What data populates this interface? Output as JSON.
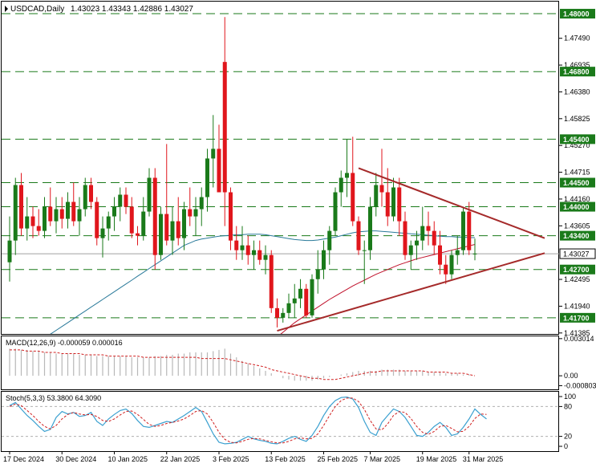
{
  "header": {
    "symbol_label": "USDCAD,Daily",
    "ohlc_text": "1.43023 1.43343 1.42886 1.43027"
  },
  "colors": {
    "bull_candle": "#1a7a1a",
    "bear_candle": "#e0161c",
    "level_line": "#1a7a1a",
    "trendline": "#a52a2a",
    "ma50": "#2a7a9a",
    "ma200": "#c0102a",
    "price_box": "#1a7a1a",
    "current_price_line": "#a0a0a0",
    "macd_hist": "#b8b8b8",
    "macd_signal": "#d02020",
    "stoch_main": "#3aa0d0",
    "stoch_signal": "#d02020"
  },
  "chart_data": [
    {
      "type": "candlestick",
      "name": "price",
      "ylim": [
        1.41365,
        1.4825
      ],
      "x_labels": [
        {
          "label": "17 Dec 2024",
          "index": 0
        },
        {
          "label": "30 Dec 2024",
          "index": 9
        },
        {
          "label": "10 Jan 2025",
          "index": 18
        },
        {
          "label": "22 Jan 2025",
          "index": 27
        },
        {
          "label": "3 Feb 2025",
          "index": 36
        },
        {
          "label": "13 Feb 2025",
          "index": 45
        },
        {
          "label": "25 Feb 2025",
          "index": 54
        },
        {
          "label": "7 Mar 2025",
          "index": 62
        },
        {
          "label": "19 Mar 2025",
          "index": 71
        },
        {
          "label": "31 Mar 2025",
          "index": 79
        }
      ],
      "y_ticks": [
        "1.47490",
        "1.46935",
        "1.46380",
        "1.45825",
        "1.45270",
        "1.44715",
        "1.44160",
        "1.43605",
        "1.42495",
        "1.41940",
        "1.41385"
      ],
      "levels": [
        "1.48000",
        "1.46800",
        "1.45400",
        "1.44500",
        "1.44000",
        "1.43400",
        "1.42700",
        "1.41700"
      ],
      "current_price": "1.43027",
      "candles": [
        {
          "o": 1.4285,
          "h": 1.438,
          "l": 1.4245,
          "c": 1.433
        },
        {
          "o": 1.433,
          "h": 1.446,
          "l": 1.43,
          "c": 1.4445
        },
        {
          "o": 1.4445,
          "h": 1.447,
          "l": 1.434,
          "c": 1.4355
        },
        {
          "o": 1.4355,
          "h": 1.442,
          "l": 1.433,
          "c": 1.438
        },
        {
          "o": 1.438,
          "h": 1.44,
          "l": 1.4335,
          "c": 1.436
        },
        {
          "o": 1.436,
          "h": 1.4395,
          "l": 1.434,
          "c": 1.435
        },
        {
          "o": 1.435,
          "h": 1.442,
          "l": 1.4335,
          "c": 1.44
        },
        {
          "o": 1.44,
          "h": 1.444,
          "l": 1.436,
          "c": 1.437
        },
        {
          "o": 1.437,
          "h": 1.442,
          "l": 1.4345,
          "c": 1.4395
        },
        {
          "o": 1.4395,
          "h": 1.442,
          "l": 1.4355,
          "c": 1.4375
        },
        {
          "o": 1.4375,
          "h": 1.443,
          "l": 1.4355,
          "c": 1.441
        },
        {
          "o": 1.441,
          "h": 1.445,
          "l": 1.436,
          "c": 1.437
        },
        {
          "o": 1.437,
          "h": 1.442,
          "l": 1.434,
          "c": 1.4395
        },
        {
          "o": 1.4395,
          "h": 1.446,
          "l": 1.438,
          "c": 1.4445
        },
        {
          "o": 1.4445,
          "h": 1.446,
          "l": 1.4395,
          "c": 1.441
        },
        {
          "o": 1.441,
          "h": 1.442,
          "l": 1.432,
          "c": 1.4335
        },
        {
          "o": 1.4335,
          "h": 1.438,
          "l": 1.4295,
          "c": 1.4355
        },
        {
          "o": 1.4355,
          "h": 1.439,
          "l": 1.433,
          "c": 1.438
        },
        {
          "o": 1.438,
          "h": 1.442,
          "l": 1.435,
          "c": 1.44
        },
        {
          "o": 1.44,
          "h": 1.444,
          "l": 1.437,
          "c": 1.4425
        },
        {
          "o": 1.4425,
          "h": 1.444,
          "l": 1.4385,
          "c": 1.44
        },
        {
          "o": 1.44,
          "h": 1.442,
          "l": 1.4335,
          "c": 1.4345
        },
        {
          "o": 1.4345,
          "h": 1.436,
          "l": 1.432,
          "c": 1.434
        },
        {
          "o": 1.434,
          "h": 1.442,
          "l": 1.433,
          "c": 1.439
        },
        {
          "o": 1.439,
          "h": 1.448,
          "l": 1.438,
          "c": 1.446
        },
        {
          "o": 1.446,
          "h": 1.448,
          "l": 1.427,
          "c": 1.43
        },
        {
          "o": 1.43,
          "h": 1.44,
          "l": 1.429,
          "c": 1.4385
        },
        {
          "o": 1.4385,
          "h": 1.453,
          "l": 1.432,
          "c": 1.433
        },
        {
          "o": 1.433,
          "h": 1.44,
          "l": 1.43,
          "c": 1.437
        },
        {
          "o": 1.437,
          "h": 1.442,
          "l": 1.432,
          "c": 1.4335
        },
        {
          "o": 1.4335,
          "h": 1.441,
          "l": 1.431,
          "c": 1.4395
        },
        {
          "o": 1.4395,
          "h": 1.444,
          "l": 1.436,
          "c": 1.438
        },
        {
          "o": 1.438,
          "h": 1.442,
          "l": 1.434,
          "c": 1.4395
        },
        {
          "o": 1.4395,
          "h": 1.444,
          "l": 1.436,
          "c": 1.442
        },
        {
          "o": 1.442,
          "h": 1.452,
          "l": 1.439,
          "c": 1.45
        },
        {
          "o": 1.45,
          "h": 1.459,
          "l": 1.444,
          "c": 1.452
        },
        {
          "o": 1.452,
          "h": 1.457,
          "l": 1.443,
          "c": 1.443
        },
        {
          "o": 1.47,
          "h": 1.4793,
          "l": 1.436,
          "c": 1.443
        },
        {
          "o": 1.443,
          "h": 1.444,
          "l": 1.431,
          "c": 1.433
        },
        {
          "o": 1.433,
          "h": 1.436,
          "l": 1.429,
          "c": 1.431
        },
        {
          "o": 1.431,
          "h": 1.436,
          "l": 1.429,
          "c": 1.432
        },
        {
          "o": 1.432,
          "h": 1.434,
          "l": 1.428,
          "c": 1.43
        },
        {
          "o": 1.43,
          "h": 1.433,
          "l": 1.427,
          "c": 1.431
        },
        {
          "o": 1.431,
          "h": 1.433,
          "l": 1.428,
          "c": 1.429
        },
        {
          "o": 1.429,
          "h": 1.432,
          "l": 1.426,
          "c": 1.43
        },
        {
          "o": 1.43,
          "h": 1.431,
          "l": 1.418,
          "c": 1.419
        },
        {
          "o": 1.419,
          "h": 1.421,
          "l": 1.415,
          "c": 1.417
        },
        {
          "o": 1.417,
          "h": 1.419,
          "l": 1.416,
          "c": 1.418
        },
        {
          "o": 1.418,
          "h": 1.422,
          "l": 1.417,
          "c": 1.42
        },
        {
          "o": 1.42,
          "h": 1.424,
          "l": 1.417,
          "c": 1.421
        },
        {
          "o": 1.421,
          "h": 1.425,
          "l": 1.419,
          "c": 1.423
        },
        {
          "o": 1.423,
          "h": 1.424,
          "l": 1.417,
          "c": 1.4175
        },
        {
          "o": 1.4175,
          "h": 1.426,
          "l": 1.417,
          "c": 1.425
        },
        {
          "o": 1.425,
          "h": 1.431,
          "l": 1.422,
          "c": 1.427
        },
        {
          "o": 1.427,
          "h": 1.433,
          "l": 1.425,
          "c": 1.431
        },
        {
          "o": 1.431,
          "h": 1.436,
          "l": 1.428,
          "c": 1.435
        },
        {
          "o": 1.435,
          "h": 1.444,
          "l": 1.434,
          "c": 1.443
        },
        {
          "o": 1.443,
          "h": 1.4475,
          "l": 1.44,
          "c": 1.446
        },
        {
          "o": 1.446,
          "h": 1.454,
          "l": 1.442,
          "c": 1.447
        },
        {
          "o": 1.447,
          "h": 1.4545,
          "l": 1.436,
          "c": 1.437
        },
        {
          "o": 1.437,
          "h": 1.438,
          "l": 1.43,
          "c": 1.431
        },
        {
          "o": 1.431,
          "h": 1.433,
          "l": 1.424,
          "c": 1.431
        },
        {
          "o": 1.431,
          "h": 1.442,
          "l": 1.429,
          "c": 1.44
        },
        {
          "o": 1.44,
          "h": 1.447,
          "l": 1.438,
          "c": 1.4445
        },
        {
          "o": 1.4445,
          "h": 1.452,
          "l": 1.44,
          "c": 1.443
        },
        {
          "o": 1.443,
          "h": 1.448,
          "l": 1.436,
          "c": 1.438
        },
        {
          "o": 1.438,
          "h": 1.446,
          "l": 1.437,
          "c": 1.444
        },
        {
          "o": 1.444,
          "h": 1.446,
          "l": 1.434,
          "c": 1.437
        },
        {
          "o": 1.437,
          "h": 1.439,
          "l": 1.429,
          "c": 1.43
        },
        {
          "o": 1.43,
          "h": 1.433,
          "l": 1.427,
          "c": 1.432
        },
        {
          "o": 1.432,
          "h": 1.435,
          "l": 1.429,
          "c": 1.433
        },
        {
          "o": 1.433,
          "h": 1.44,
          "l": 1.431,
          "c": 1.436
        },
        {
          "o": 1.436,
          "h": 1.439,
          "l": 1.432,
          "c": 1.435
        },
        {
          "o": 1.435,
          "h": 1.437,
          "l": 1.43,
          "c": 1.432
        },
        {
          "o": 1.432,
          "h": 1.435,
          "l": 1.426,
          "c": 1.428
        },
        {
          "o": 1.428,
          "h": 1.43,
          "l": 1.424,
          "c": 1.426
        },
        {
          "o": 1.426,
          "h": 1.431,
          "l": 1.425,
          "c": 1.43
        },
        {
          "o": 1.43,
          "h": 1.434,
          "l": 1.428,
          "c": 1.431
        },
        {
          "o": 1.431,
          "h": 1.44,
          "l": 1.43,
          "c": 1.439
        },
        {
          "o": 1.439,
          "h": 1.441,
          "l": 1.43,
          "c": 1.431
        },
        {
          "o": 1.4302,
          "h": 1.4334,
          "l": 1.4289,
          "c": 1.4303
        }
      ],
      "ma50": [
        1.408,
        1.4088,
        1.4096,
        1.4104,
        1.4112,
        1.412,
        1.4128,
        1.4136,
        1.4144,
        1.4152,
        1.416,
        1.4168,
        1.4176,
        1.4184,
        1.4192,
        1.42,
        1.4208,
        1.4216,
        1.4224,
        1.4232,
        1.424,
        1.4248,
        1.4256,
        1.4264,
        1.4272,
        1.428,
        1.4288,
        1.4296,
        1.4304,
        1.4312,
        1.432,
        1.4325,
        1.433,
        1.4333,
        1.4335,
        1.4337,
        1.4339,
        1.434,
        1.4341,
        1.4342,
        1.4342,
        1.4343,
        1.4343,
        1.4343,
        1.4342,
        1.434,
        1.4338,
        1.4336,
        1.4334,
        1.4332,
        1.4331,
        1.433,
        1.433,
        1.4331,
        1.4333,
        1.4335,
        1.4337,
        1.434,
        1.4343,
        1.4346,
        1.4348,
        1.4349,
        1.435,
        1.435,
        1.4349,
        1.4348,
        1.4347,
        1.4346,
        1.4345,
        1.4344,
        1.4343,
        1.4342,
        1.4341,
        1.434,
        1.4339,
        1.4338,
        1.4338,
        1.4337,
        1.4337,
        1.4336,
        1.4336
      ],
      "ma200": [
        null,
        null,
        null,
        null,
        null,
        null,
        null,
        null,
        null,
        null,
        null,
        null,
        null,
        null,
        null,
        null,
        null,
        null,
        null,
        null,
        null,
        null,
        null,
        null,
        null,
        null,
        null,
        null,
        null,
        null,
        null,
        null,
        null,
        null,
        null,
        null,
        null,
        null,
        null,
        null,
        null,
        null,
        null,
        null,
        null,
        null,
        1.413,
        1.414,
        1.415,
        1.416,
        1.4168,
        1.4176,
        1.4184,
        1.4192,
        1.42,
        1.4208,
        1.4215,
        1.4222,
        1.4229,
        1.4236,
        1.4242,
        1.4248,
        1.4254,
        1.426,
        1.4265,
        1.427,
        1.4275,
        1.428,
        1.4284,
        1.4288,
        1.4292,
        1.4295,
        1.4298,
        1.4301,
        1.4304,
        1.4307,
        1.431,
        1.4313,
        1.4316,
        1.4319,
        1.4322
      ],
      "trendlines": [
        {
          "name": "upper",
          "start": {
            "index": 60,
            "value": 1.448
          },
          "end": {
            "index": 92,
            "value": 1.4335
          }
        },
        {
          "name": "lower",
          "start": {
            "index": 46,
            "value": 1.4143
          },
          "end": {
            "index": 92,
            "value": 1.4304
          }
        }
      ]
    },
    {
      "type": "bar",
      "name": "macd",
      "label": "MACD(12,26,9) -0.000059 0.000016",
      "ylim": [
        -0.0011,
        0.0032
      ],
      "y_ticks": [
        "0.003014",
        "0.00",
        "-0.000803"
      ],
      "histogram": [
        0.0022,
        0.0022,
        0.0021,
        0.0021,
        0.002,
        0.002,
        0.0019,
        0.0019,
        0.0018,
        0.0018,
        0.0018,
        0.0018,
        0.0017,
        0.0017,
        0.0017,
        0.0016,
        0.0016,
        0.0016,
        0.0016,
        0.0016,
        0.0016,
        0.0015,
        0.0015,
        0.0015,
        0.0015,
        0.0016,
        0.0016,
        0.0017,
        0.0017,
        0.0018,
        0.0018,
        0.0019,
        0.0019,
        0.0019,
        0.0019,
        0.002,
        0.0021,
        0.0022,
        0.0018,
        0.0015,
        0.0012,
        0.001,
        0.0008,
        0.0006,
        0.0004,
        0.0002,
        0.0,
        -0.0002,
        -0.0003,
        -0.0004,
        -0.0004,
        -0.0004,
        -0.0004,
        -0.0003,
        -0.0002,
        -0.0001,
        0.0,
        0.0001,
        0.0002,
        0.0003,
        0.0004,
        0.0004,
        0.0004,
        0.0004,
        0.0005,
        0.0005,
        0.0005,
        0.0005,
        0.0004,
        0.0004,
        0.0004,
        0.0004,
        0.0003,
        0.0003,
        0.0003,
        0.0002,
        0.0002,
        0.0002,
        0.0001,
        0.0001,
        0.0
      ],
      "signal": [
        0.0021,
        0.0021,
        0.0021,
        0.002,
        0.002,
        0.002,
        0.0019,
        0.0019,
        0.0019,
        0.0018,
        0.0018,
        0.0018,
        0.0018,
        0.0017,
        0.0017,
        0.0017,
        0.0017,
        0.0016,
        0.0016,
        0.0016,
        0.0016,
        0.0016,
        0.0016,
        0.0015,
        0.0015,
        0.0015,
        0.0015,
        0.0015,
        0.0015,
        0.0015,
        0.0015,
        0.0015,
        0.0015,
        0.0014,
        0.0014,
        0.0014,
        0.0014,
        0.0014,
        0.0013,
        0.0012,
        0.0011,
        0.001,
        0.0009,
        0.0008,
        0.0007,
        0.0005,
        0.0004,
        0.0003,
        0.0002,
        0.0001,
        0.0,
        -0.0001,
        -0.0002,
        -0.0002,
        -0.0003,
        -0.0003,
        -0.0003,
        -0.0002,
        -0.0001,
        0.0,
        0.0001,
        0.0002,
        0.0003,
        0.0003,
        0.0004,
        0.0004,
        0.0004,
        0.0004,
        0.0004,
        0.0004,
        0.0004,
        0.0004,
        0.0003,
        0.0003,
        0.0003,
        0.0003,
        0.0002,
        0.0002,
        0.0002,
        0.0001,
        0.0
      ]
    },
    {
      "type": "line",
      "name": "stochastic",
      "label": "Stoch(5,3,3) 53.3800 64.3090",
      "ylim": [
        0,
        100
      ],
      "y_ticks": [
        "100",
        "80",
        "20",
        "0"
      ],
      "main": [
        82,
        88,
        75,
        62,
        52,
        40,
        30,
        34,
        58,
        70,
        65,
        68,
        60,
        62,
        68,
        50,
        42,
        55,
        64,
        72,
        75,
        66,
        52,
        40,
        38,
        42,
        46,
        50,
        48,
        55,
        62,
        70,
        78,
        70,
        48,
        25,
        8,
        5,
        6,
        8,
        14,
        20,
        15,
        12,
        10,
        6,
        5,
        10,
        16,
        20,
        14,
        10,
        22,
        40,
        62,
        80,
        92,
        98,
        99,
        95,
        78,
        50,
        28,
        22,
        48,
        62,
        75,
        70,
        58,
        40,
        22,
        20,
        28,
        40,
        48,
        38,
        22,
        25,
        38,
        55,
        75,
        64,
        55
      ],
      "signal": [
        80,
        85,
        82,
        72,
        62,
        50,
        40,
        35,
        42,
        55,
        64,
        68,
        65,
        63,
        64,
        60,
        52,
        50,
        55,
        63,
        70,
        71,
        64,
        54,
        44,
        40,
        42,
        46,
        48,
        51,
        55,
        62,
        70,
        72,
        65,
        48,
        28,
        14,
        8,
        7,
        10,
        14,
        16,
        15,
        12,
        9,
        7,
        7,
        10,
        15,
        17,
        15,
        16,
        25,
        42,
        62,
        80,
        92,
        97,
        97,
        90,
        74,
        52,
        35,
        33,
        45,
        62,
        70,
        68,
        56,
        40,
        28,
        24,
        30,
        40,
        42,
        36,
        29,
        30,
        40,
        56,
        65,
        64
      ]
    }
  ]
}
